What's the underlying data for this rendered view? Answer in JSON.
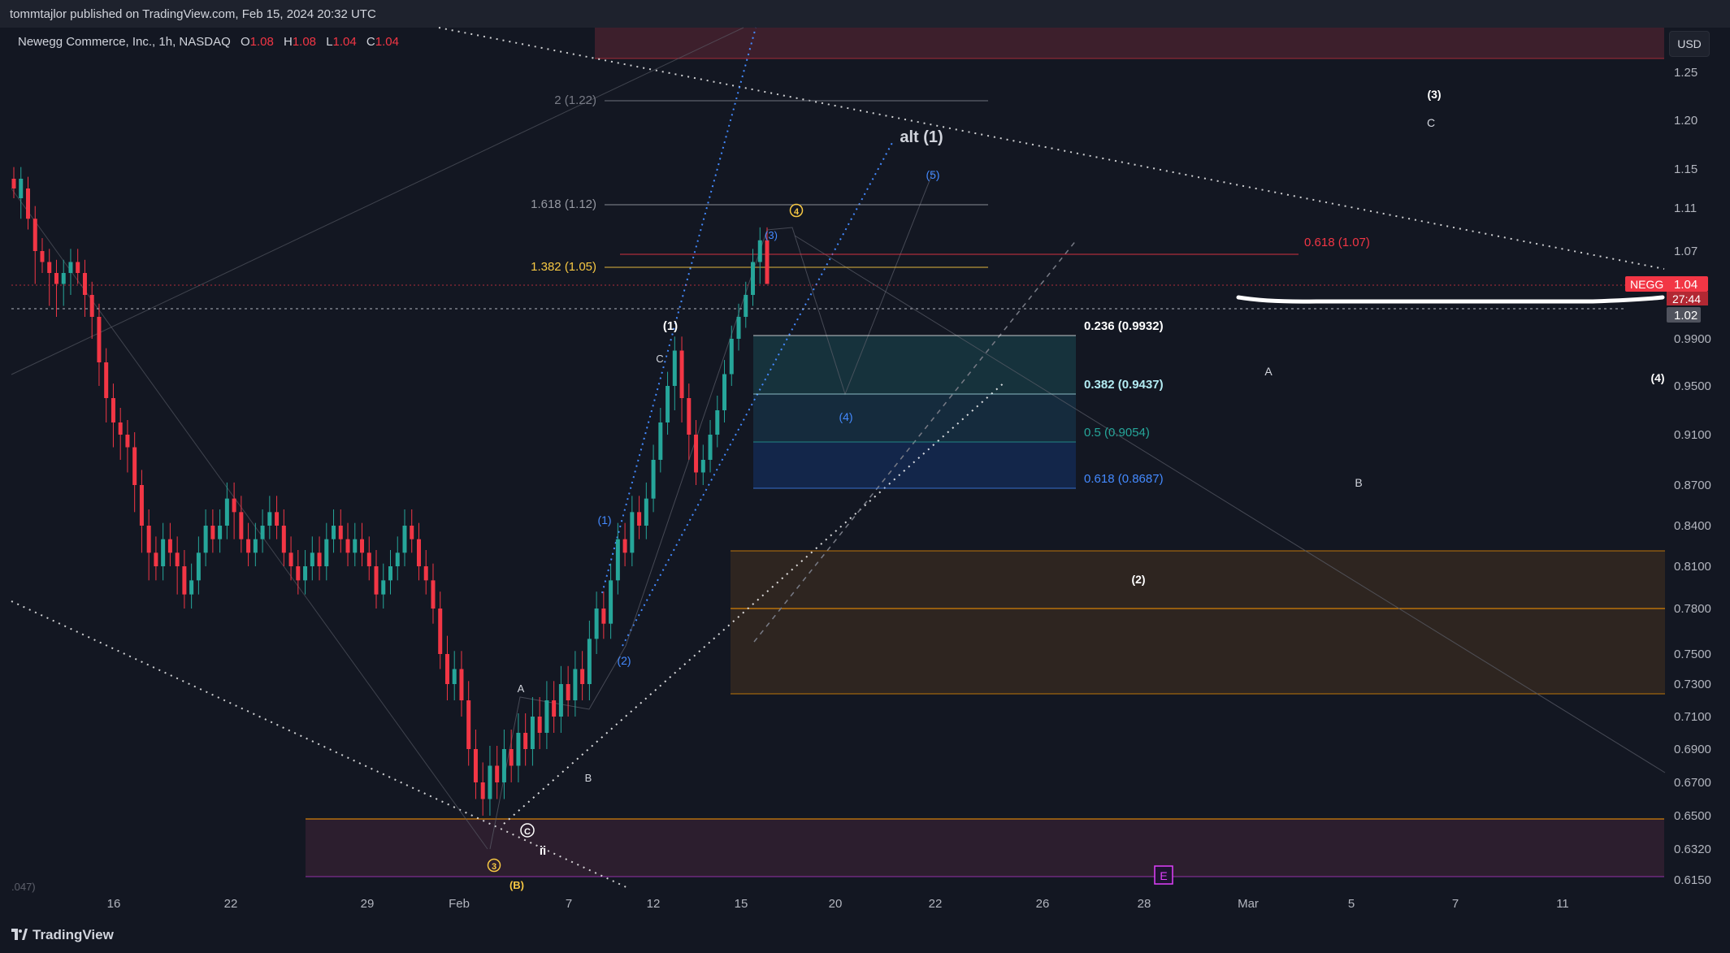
{
  "header": {
    "published": "tommtajlor published on TradingView.com, Feb 15, 2024 20:32 UTC"
  },
  "legend": {
    "title": "Newegg Commerce, Inc., 1h, NASDAQ",
    "o_label": "O",
    "o": "1.08",
    "h_label": "H",
    "h": "1.08",
    "l_label": "L",
    "l": "1.04",
    "c_label": "C",
    "c": "1.04"
  },
  "currency_button": "USD",
  "footer": {
    "brand": "TradingView"
  },
  "price_axis": {
    "ticks": [
      "1.25",
      "1.20",
      "1.15",
      "1.11",
      "1.07",
      "0.9900",
      "0.9500",
      "0.9100",
      "0.8700",
      "0.8400",
      "0.8100",
      "0.7800",
      "0.7500",
      "0.7300",
      "0.7100",
      "0.6900",
      "0.6700",
      "0.6500",
      "0.6320",
      "0.6150"
    ],
    "symbol_badge": "NEGG",
    "last_price": "1.04",
    "countdown": "27:44",
    "ref_price": "1.02"
  },
  "colors": {
    "background": "#131722",
    "up": "#26a69a",
    "down": "#f23645",
    "fib_yellow": "#f7c843",
    "fib_red": "#f23645",
    "zone_orange": "#ff9800",
    "zone_pink": "#e040fb",
    "wave_blue": "#448aff"
  },
  "chart_data": {
    "type": "candlestick",
    "symbol": "NEGG",
    "timeframe": "1h",
    "x_tick_labels": [
      "16",
      "22",
      "29",
      "Feb",
      "7",
      "12",
      "15",
      "20",
      "22",
      "26",
      "28",
      "Mar",
      "5",
      "7",
      "11"
    ],
    "y_range": [
      0.615,
      1.25
    ],
    "candles": [
      [
        1.14,
        1.13,
        1.12
      ],
      [
        1.12,
        1.14,
        1.1
      ],
      [
        1.13,
        1.1,
        1.09
      ],
      [
        1.1,
        1.07,
        1.04
      ],
      [
        1.07,
        1.06,
        1.05
      ],
      [
        1.06,
        1.05,
        1.02
      ],
      [
        1.05,
        1.04,
        1.01
      ],
      [
        1.04,
        1.05,
        1.02
      ],
      [
        1.05,
        1.06,
        1.03
      ],
      [
        1.06,
        1.05,
        1.04
      ],
      [
        1.05,
        1.03,
        1.01
      ],
      [
        1.03,
        1.01,
        0.99
      ],
      [
        1.01,
        0.97,
        0.95
      ],
      [
        0.97,
        0.94,
        0.92
      ],
      [
        0.94,
        0.92,
        0.9
      ],
      [
        0.92,
        0.91,
        0.89
      ],
      [
        0.91,
        0.9,
        0.88
      ],
      [
        0.9,
        0.87,
        0.85
      ],
      [
        0.87,
        0.84,
        0.82
      ],
      [
        0.84,
        0.82,
        0.8
      ],
      [
        0.82,
        0.81,
        0.8
      ],
      [
        0.81,
        0.83,
        0.8
      ],
      [
        0.83,
        0.82,
        0.81
      ],
      [
        0.82,
        0.81,
        0.79
      ],
      [
        0.81,
        0.79,
        0.78
      ],
      [
        0.79,
        0.8,
        0.78
      ],
      [
        0.8,
        0.82,
        0.79
      ],
      [
        0.82,
        0.84,
        0.81
      ],
      [
        0.84,
        0.83,
        0.82
      ],
      [
        0.83,
        0.84,
        0.82
      ],
      [
        0.84,
        0.86,
        0.83
      ],
      [
        0.86,
        0.85,
        0.83
      ],
      [
        0.85,
        0.83,
        0.82
      ],
      [
        0.83,
        0.82,
        0.81
      ],
      [
        0.82,
        0.83,
        0.81
      ],
      [
        0.83,
        0.84,
        0.82
      ],
      [
        0.84,
        0.85,
        0.83
      ],
      [
        0.85,
        0.84,
        0.83
      ],
      [
        0.84,
        0.82,
        0.81
      ],
      [
        0.82,
        0.81,
        0.8
      ],
      [
        0.81,
        0.8,
        0.79
      ],
      [
        0.8,
        0.81,
        0.79
      ],
      [
        0.81,
        0.82,
        0.8
      ],
      [
        0.82,
        0.81,
        0.8
      ],
      [
        0.81,
        0.83,
        0.8
      ],
      [
        0.83,
        0.84,
        0.82
      ],
      [
        0.84,
        0.83,
        0.82
      ],
      [
        0.83,
        0.82,
        0.81
      ],
      [
        0.82,
        0.83,
        0.81
      ],
      [
        0.83,
        0.82,
        0.81
      ],
      [
        0.82,
        0.81,
        0.8
      ],
      [
        0.81,
        0.79,
        0.78
      ],
      [
        0.79,
        0.8,
        0.78
      ],
      [
        0.8,
        0.81,
        0.79
      ],
      [
        0.81,
        0.82,
        0.8
      ],
      [
        0.82,
        0.84,
        0.81
      ],
      [
        0.84,
        0.83,
        0.82
      ],
      [
        0.83,
        0.81,
        0.8
      ],
      [
        0.81,
        0.8,
        0.79
      ],
      [
        0.8,
        0.78,
        0.77
      ],
      [
        0.78,
        0.75,
        0.74
      ],
      [
        0.75,
        0.73,
        0.72
      ],
      [
        0.73,
        0.74,
        0.72
      ],
      [
        0.74,
        0.72,
        0.71
      ],
      [
        0.72,
        0.69,
        0.68
      ],
      [
        0.69,
        0.67,
        0.66
      ],
      [
        0.67,
        0.66,
        0.65
      ],
      [
        0.66,
        0.68,
        0.65
      ],
      [
        0.68,
        0.67,
        0.66
      ],
      [
        0.67,
        0.69,
        0.66
      ],
      [
        0.69,
        0.68,
        0.67
      ],
      [
        0.68,
        0.7,
        0.67
      ],
      [
        0.7,
        0.69,
        0.68
      ],
      [
        0.69,
        0.71,
        0.68
      ],
      [
        0.71,
        0.7,
        0.69
      ],
      [
        0.7,
        0.72,
        0.69
      ],
      [
        0.72,
        0.71,
        0.7
      ],
      [
        0.71,
        0.73,
        0.7
      ],
      [
        0.73,
        0.72,
        0.71
      ],
      [
        0.72,
        0.74,
        0.71
      ],
      [
        0.74,
        0.73,
        0.72
      ],
      [
        0.73,
        0.76,
        0.72
      ],
      [
        0.76,
        0.78,
        0.75
      ],
      [
        0.78,
        0.77,
        0.76
      ],
      [
        0.77,
        0.8,
        0.76
      ],
      [
        0.8,
        0.83,
        0.79
      ],
      [
        0.83,
        0.82,
        0.81
      ],
      [
        0.82,
        0.85,
        0.81
      ],
      [
        0.85,
        0.84,
        0.83
      ],
      [
        0.84,
        0.86,
        0.83
      ],
      [
        0.86,
        0.89,
        0.85
      ],
      [
        0.89,
        0.92,
        0.88
      ],
      [
        0.92,
        0.95,
        0.91
      ],
      [
        0.95,
        0.98,
        0.93
      ],
      [
        0.98,
        0.94,
        0.92
      ],
      [
        0.94,
        0.91,
        0.89
      ],
      [
        0.91,
        0.88,
        0.87
      ],
      [
        0.88,
        0.89,
        0.87
      ],
      [
        0.89,
        0.91,
        0.88
      ],
      [
        0.91,
        0.93,
        0.9
      ],
      [
        0.93,
        0.96,
        0.92
      ],
      [
        0.96,
        0.99,
        0.95
      ],
      [
        0.99,
        1.01,
        0.98
      ],
      [
        1.01,
        1.03,
        1.0
      ],
      [
        1.03,
        1.06,
        1.02
      ],
      [
        1.06,
        1.08,
        1.04
      ],
      [
        1.08,
        1.04,
        1.04
      ]
    ]
  },
  "fib_extension": [
    {
      "label": "2 (1.22)",
      "color": "#787b86"
    },
    {
      "label": "1.618 (1.12)",
      "color": "#9598a1"
    },
    {
      "label": "1.382 (1.05)",
      "color": "#f7c843"
    }
  ],
  "fib_retracement": [
    {
      "label": "0.236 (0.9932)",
      "color": "#ffffff"
    },
    {
      "label": "0.382 (0.9437)",
      "color": "#b2ebf2"
    },
    {
      "label": "0.5 (0.9054)",
      "color": "#26a69a"
    },
    {
      "label": "0.618 (0.8687)",
      "color": "#448aff"
    }
  ],
  "fib_red": {
    "label": "0.618 (1.07)"
  },
  "wave_labels": {
    "alt1": "alt (1)",
    "w3top": "(3)",
    "c_top": "C",
    "a_mid": "A",
    "w4_right": "(4)",
    "b_mid": "B",
    "w2_box": "(2)",
    "w1_white": "(1)",
    "c_left": "C",
    "b1": "(1)",
    "b2": "(2)",
    "b3": "(3)",
    "b4": "(4)",
    "b5": "(5)",
    "y4": "4",
    "y3": "3",
    "yB": "(B)",
    "cC": "C",
    "ii": "ii",
    "lowA": "A",
    "lowB": "B",
    "e_box": "E",
    "cutoff": ".047)"
  }
}
